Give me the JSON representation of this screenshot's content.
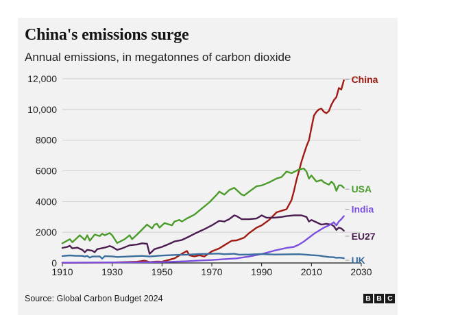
{
  "title": "China's emissions surge",
  "subtitle": "Annual emissions, in megatonnes of carbon dioxide",
  "source": "Source: Global Carbon Budget 2024",
  "logo": [
    "B",
    "B",
    "C"
  ],
  "chart_data": {
    "type": "line",
    "xlim": [
      1910,
      2030
    ],
    "ylim": [
      0,
      12000
    ],
    "x_ticks": [
      1910,
      1930,
      1950,
      1970,
      1990,
      2010,
      2030
    ],
    "x_tick_labels": [
      "1910",
      "1930",
      "1950",
      "1970",
      "1990",
      "2010",
      "2030"
    ],
    "y_ticks": [
      0,
      2000,
      4000,
      6000,
      8000,
      10000,
      12000
    ],
    "y_tick_labels": [
      "0",
      "2000",
      "4000",
      "6000",
      "8000",
      "10,000",
      "12,000"
    ],
    "series": [
      {
        "name": "China",
        "label": "China",
        "color": "#a01a12",
        "points": [
          [
            1910,
            10
          ],
          [
            1930,
            30
          ],
          [
            1940,
            80
          ],
          [
            1943,
            150
          ],
          [
            1945,
            60
          ],
          [
            1948,
            90
          ],
          [
            1950,
            80
          ],
          [
            1955,
            300
          ],
          [
            1958,
            600
          ],
          [
            1960,
            780
          ],
          [
            1961,
            500
          ],
          [
            1963,
            430
          ],
          [
            1965,
            500
          ],
          [
            1967,
            420
          ],
          [
            1970,
            760
          ],
          [
            1973,
            950
          ],
          [
            1975,
            1150
          ],
          [
            1978,
            1450
          ],
          [
            1980,
            1470
          ],
          [
            1983,
            1650
          ],
          [
            1985,
            1950
          ],
          [
            1988,
            2300
          ],
          [
            1990,
            2450
          ],
          [
            1993,
            2800
          ],
          [
            1996,
            3300
          ],
          [
            1998,
            3400
          ],
          [
            2000,
            3500
          ],
          [
            2002,
            4100
          ],
          [
            2003,
            4700
          ],
          [
            2004,
            5400
          ],
          [
            2005,
            6000
          ],
          [
            2006,
            6600
          ],
          [
            2007,
            7100
          ],
          [
            2008,
            7600
          ],
          [
            2009,
            8000
          ],
          [
            2010,
            8800
          ],
          [
            2011,
            9600
          ],
          [
            2012,
            9850
          ],
          [
            2013,
            10000
          ],
          [
            2014,
            10050
          ],
          [
            2015,
            9850
          ],
          [
            2016,
            9750
          ],
          [
            2017,
            9900
          ],
          [
            2018,
            10300
          ],
          [
            2019,
            10600
          ],
          [
            2020,
            10800
          ],
          [
            2021,
            11400
          ],
          [
            2022,
            11300
          ],
          [
            2023,
            11900
          ]
        ]
      },
      {
        "name": "USA",
        "label": "USA",
        "color": "#4a9b2a",
        "points": [
          [
            1910,
            1280
          ],
          [
            1913,
            1550
          ],
          [
            1914,
            1350
          ],
          [
            1916,
            1650
          ],
          [
            1917,
            1800
          ],
          [
            1919,
            1500
          ],
          [
            1920,
            1800
          ],
          [
            1921,
            1450
          ],
          [
            1923,
            1850
          ],
          [
            1925,
            1750
          ],
          [
            1926,
            1900
          ],
          [
            1927,
            1800
          ],
          [
            1929,
            1950
          ],
          [
            1930,
            1800
          ],
          [
            1932,
            1300
          ],
          [
            1935,
            1550
          ],
          [
            1937,
            1800
          ],
          [
            1938,
            1550
          ],
          [
            1940,
            1850
          ],
          [
            1944,
            2500
          ],
          [
            1946,
            2250
          ],
          [
            1947,
            2500
          ],
          [
            1948,
            2550
          ],
          [
            1949,
            2300
          ],
          [
            1951,
            2600
          ],
          [
            1954,
            2450
          ],
          [
            1955,
            2700
          ],
          [
            1957,
            2800
          ],
          [
            1958,
            2700
          ],
          [
            1960,
            2900
          ],
          [
            1963,
            3150
          ],
          [
            1966,
            3550
          ],
          [
            1969,
            3950
          ],
          [
            1972,
            4450
          ],
          [
            1973,
            4650
          ],
          [
            1975,
            4450
          ],
          [
            1977,
            4750
          ],
          [
            1979,
            4900
          ],
          [
            1980,
            4750
          ],
          [
            1982,
            4450
          ],
          [
            1983,
            4400
          ],
          [
            1985,
            4650
          ],
          [
            1988,
            5000
          ],
          [
            1990,
            5050
          ],
          [
            1993,
            5250
          ],
          [
            1996,
            5500
          ],
          [
            1998,
            5600
          ],
          [
            2000,
            5950
          ],
          [
            2002,
            5850
          ],
          [
            2005,
            6100
          ],
          [
            2007,
            6150
          ],
          [
            2008,
            5950
          ],
          [
            2009,
            5500
          ],
          [
            2010,
            5700
          ],
          [
            2012,
            5300
          ],
          [
            2014,
            5400
          ],
          [
            2015,
            5250
          ],
          [
            2017,
            5100
          ],
          [
            2018,
            5300
          ],
          [
            2019,
            5150
          ],
          [
            2020,
            4700
          ],
          [
            2021,
            5050
          ],
          [
            2022,
            5050
          ],
          [
            2023,
            4900
          ]
        ]
      },
      {
        "name": "EU27",
        "label": "EU27",
        "color": "#4a1c50",
        "points": [
          [
            1910,
            980
          ],
          [
            1912,
            1050
          ],
          [
            1913,
            1120
          ],
          [
            1914,
            950
          ],
          [
            1916,
            1000
          ],
          [
            1918,
            850
          ],
          [
            1919,
            700
          ],
          [
            1920,
            850
          ],
          [
            1922,
            800
          ],
          [
            1923,
            700
          ],
          [
            1924,
            900
          ],
          [
            1927,
            1000
          ],
          [
            1929,
            1100
          ],
          [
            1930,
            1050
          ],
          [
            1932,
            850
          ],
          [
            1934,
            950
          ],
          [
            1937,
            1150
          ],
          [
            1940,
            1200
          ],
          [
            1942,
            1280
          ],
          [
            1944,
            1250
          ],
          [
            1945,
            600
          ],
          [
            1946,
            750
          ],
          [
            1947,
            900
          ],
          [
            1950,
            1050
          ],
          [
            1953,
            1250
          ],
          [
            1955,
            1400
          ],
          [
            1958,
            1500
          ],
          [
            1960,
            1650
          ],
          [
            1963,
            1900
          ],
          [
            1965,
            2050
          ],
          [
            1967,
            2200
          ],
          [
            1970,
            2450
          ],
          [
            1973,
            2750
          ],
          [
            1975,
            2700
          ],
          [
            1977,
            2850
          ],
          [
            1979,
            3100
          ],
          [
            1980,
            3050
          ],
          [
            1982,
            2850
          ],
          [
            1985,
            2850
          ],
          [
            1988,
            2900
          ],
          [
            1990,
            3100
          ],
          [
            1992,
            2950
          ],
          [
            1995,
            2950
          ],
          [
            1998,
            3000
          ],
          [
            2000,
            3050
          ],
          [
            2003,
            3100
          ],
          [
            2006,
            3100
          ],
          [
            2008,
            3000
          ],
          [
            2009,
            2700
          ],
          [
            2010,
            2800
          ],
          [
            2012,
            2650
          ],
          [
            2014,
            2500
          ],
          [
            2016,
            2550
          ],
          [
            2018,
            2500
          ],
          [
            2019,
            2400
          ],
          [
            2020,
            2150
          ],
          [
            2021,
            2300
          ],
          [
            2022,
            2250
          ],
          [
            2023,
            2100
          ]
        ]
      },
      {
        "name": "India",
        "label": "India",
        "color": "#7b4fe0",
        "points": [
          [
            1910,
            20
          ],
          [
            1920,
            25
          ],
          [
            1930,
            35
          ],
          [
            1940,
            40
          ],
          [
            1950,
            60
          ],
          [
            1955,
            80
          ],
          [
            1960,
            110
          ],
          [
            1965,
            160
          ],
          [
            1970,
            190
          ],
          [
            1975,
            250
          ],
          [
            1980,
            300
          ],
          [
            1985,
            420
          ],
          [
            1990,
            580
          ],
          [
            1995,
            800
          ],
          [
            2000,
            980
          ],
          [
            2003,
            1050
          ],
          [
            2005,
            1200
          ],
          [
            2007,
            1400
          ],
          [
            2009,
            1650
          ],
          [
            2011,
            1900
          ],
          [
            2013,
            2100
          ],
          [
            2015,
            2300
          ],
          [
            2017,
            2450
          ],
          [
            2019,
            2650
          ],
          [
            2020,
            2450
          ],
          [
            2021,
            2700
          ],
          [
            2022,
            2850
          ],
          [
            2023,
            3050
          ]
        ]
      },
      {
        "name": "UK",
        "label": "UK",
        "color": "#3a6e9e",
        "points": [
          [
            1910,
            450
          ],
          [
            1913,
            490
          ],
          [
            1915,
            470
          ],
          [
            1918,
            460
          ],
          [
            1919,
            420
          ],
          [
            1920,
            460
          ],
          [
            1921,
            350
          ],
          [
            1922,
            420
          ],
          [
            1925,
            430
          ],
          [
            1926,
            280
          ],
          [
            1927,
            440
          ],
          [
            1930,
            430
          ],
          [
            1932,
            390
          ],
          [
            1935,
            410
          ],
          [
            1940,
            450
          ],
          [
            1942,
            460
          ],
          [
            1945,
            420
          ],
          [
            1950,
            480
          ],
          [
            1955,
            520
          ],
          [
            1960,
            540
          ],
          [
            1965,
            580
          ],
          [
            1970,
            600
          ],
          [
            1973,
            610
          ],
          [
            1975,
            570
          ],
          [
            1979,
            600
          ],
          [
            1981,
            540
          ],
          [
            1985,
            550
          ],
          [
            1990,
            580
          ],
          [
            1995,
            550
          ],
          [
            2000,
            560
          ],
          [
            2005,
            570
          ],
          [
            2008,
            540
          ],
          [
            2010,
            510
          ],
          [
            2013,
            480
          ],
          [
            2015,
            430
          ],
          [
            2017,
            390
          ],
          [
            2019,
            370
          ],
          [
            2020,
            330
          ],
          [
            2021,
            350
          ],
          [
            2022,
            340
          ],
          [
            2023,
            310
          ]
        ]
      }
    ],
    "legend_position": "inline labels at line ends"
  }
}
